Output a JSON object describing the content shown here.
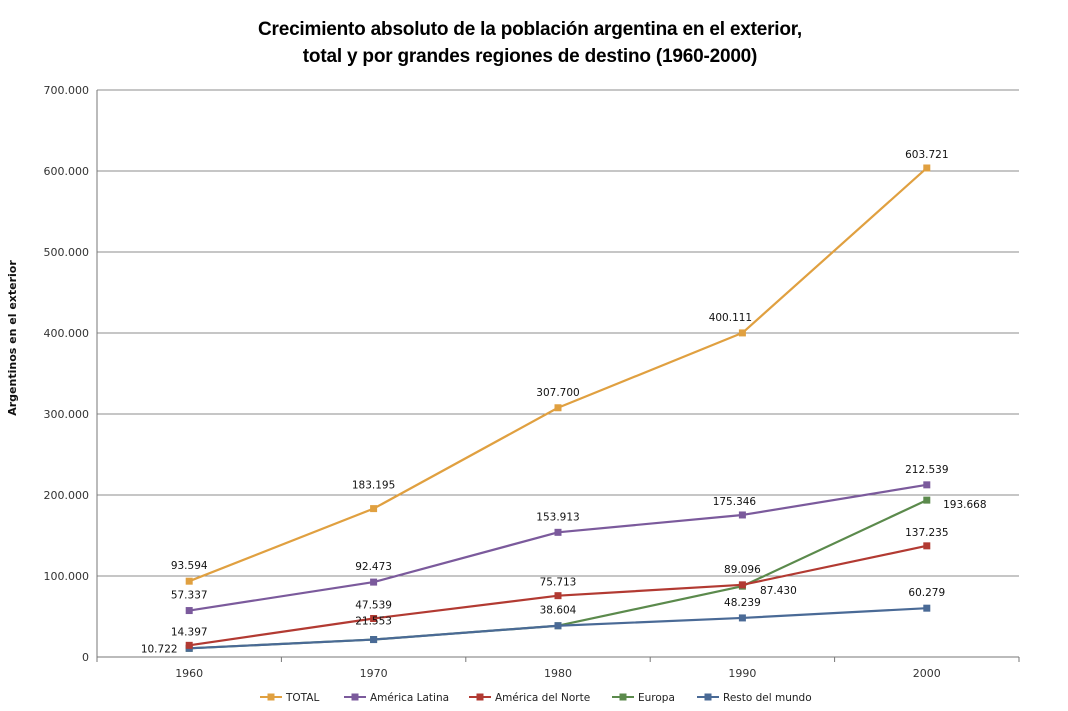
{
  "chart_data": {
    "type": "line",
    "title_lines": [
      "Crecimiento absoluto de la población argentina en el exterior,",
      "total y por grandes regiones de destino (1960-2000)"
    ],
    "xlabel": "",
    "ylabel": "Argentinos en el exterior",
    "categories": [
      "1960",
      "1970",
      "1980",
      "1990",
      "2000"
    ],
    "ylim": [
      0,
      700000
    ],
    "yticks": [
      0,
      100000,
      200000,
      300000,
      400000,
      500000,
      600000,
      700000
    ],
    "ytick_labels": [
      "0",
      "100.000",
      "200.000",
      "300.000",
      "400.000",
      "500.000",
      "600.000",
      "700.000"
    ],
    "grid": true,
    "legend_position": "bottom",
    "series": [
      {
        "name": "TOTAL",
        "color": "#E0A040",
        "values": [
          93594,
          183195,
          307700,
          400111,
          603721
        ],
        "labels": [
          "93.594",
          "183.195",
          "307.700",
          "400.111",
          "603.721"
        ]
      },
      {
        "name": "América Latina",
        "color": "#7B5A9C",
        "values": [
          57337,
          92473,
          153913,
          175346,
          212539
        ],
        "labels": [
          "57.337",
          "92.473",
          "153.913",
          "175.346",
          "212.539"
        ]
      },
      {
        "name": "América del Norte",
        "color": "#B23A32",
        "values": [
          14397,
          47539,
          75713,
          89096,
          137235
        ],
        "labels": [
          "14.397",
          "47.539",
          "75.713",
          "89.096",
          "137.235"
        ]
      },
      {
        "name": "Europa",
        "color": "#5B8A4C",
        "values": [
          10722,
          21553,
          38604,
          87430,
          193668
        ],
        "labels": [
          "",
          "",
          "",
          "87.430",
          "193.668"
        ]
      },
      {
        "name": "Resto del mundo",
        "color": "#4A6A96",
        "values": [
          10722,
          21553,
          38604,
          48239,
          60279
        ],
        "labels": [
          "10.722",
          "21.553",
          "38.604",
          "48.239",
          "60.279"
        ]
      }
    ]
  }
}
